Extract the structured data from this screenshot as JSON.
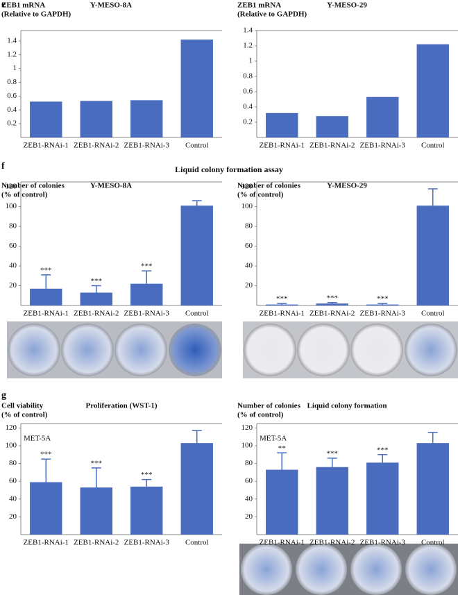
{
  "panels": [
    "e",
    "f",
    "g"
  ],
  "section_title": "Liquid colony formation assay",
  "chart_data": [
    {
      "type": "bar",
      "title": "Y-MESO-8A",
      "ylabel": [
        "ZEB1 mRNA",
        "(Relative to GAPDH)"
      ],
      "categories": [
        "ZEB1-RNAi-1",
        "ZEB1-RNAi-2",
        "ZEB1-RNAi-3",
        "Control"
      ],
      "values": [
        0.52,
        0.53,
        0.54,
        1.42
      ],
      "color": "#4a6cbe",
      "ylim": [
        0,
        1.55
      ],
      "yticks": [
        0.2,
        0.4,
        0.6,
        0.8,
        1.0,
        1.2,
        1.4
      ]
    },
    {
      "type": "bar",
      "title": "Y-MESO-29",
      "ylabel": [
        "ZEB1 mRNA",
        "(Relative to GAPDH)"
      ],
      "categories": [
        "ZEB1-RNAi-1",
        "ZEB1-RNAi-2",
        "ZEB1-RNAi-3",
        "Control"
      ],
      "values": [
        0.32,
        0.28,
        0.53,
        1.22
      ],
      "color": "#4a6cbe",
      "ylim": [
        0,
        1.4
      ],
      "yticks": [
        0.2,
        0.4,
        0.6,
        0.8,
        1.0,
        1.2,
        1.4
      ]
    },
    {
      "type": "bar",
      "title": "Y-MESO-8A",
      "ylabel": [
        "Number of colonies",
        "(% of control)"
      ],
      "categories": [
        "ZEB1-RNAi-1",
        "ZEB1-RNAi-2",
        "ZEB1-RNAi-3",
        "Control"
      ],
      "values": [
        17,
        13,
        22,
        101
      ],
      "errors": [
        14,
        7,
        13,
        5
      ],
      "annotations": [
        "***",
        "***",
        "***",
        null
      ],
      "color": "#4a6cbe",
      "ylim": [
        0,
        125
      ],
      "yticks": [
        20,
        40,
        60,
        80,
        100,
        120
      ]
    },
    {
      "type": "bar",
      "title": "Y-MESO-29",
      "ylabel": [
        "Number of colonies",
        "(% of control)"
      ],
      "categories": [
        "ZEB1-RNAi-1",
        "ZEB1-RNAi-2",
        "ZEB1-RNAi-3",
        "Control"
      ],
      "values": [
        1,
        2,
        1,
        101
      ],
      "errors": [
        1,
        1,
        1,
        17
      ],
      "annotations": [
        "***",
        "***",
        "***",
        null
      ],
      "color": "#4a6cbe",
      "ylim": [
        0,
        125
      ],
      "yticks": [
        20,
        40,
        60,
        80,
        100,
        120
      ]
    },
    {
      "type": "bar",
      "title": "Proliferation (WST-1)",
      "ylabel": [
        "Cell viability",
        "(% of control)"
      ],
      "cell_line": "MET-5A",
      "categories": [
        "ZEB1-RNAi-1",
        "ZEB1-RNAi-2",
        "ZEB1-RNAi-3",
        "Control"
      ],
      "values": [
        59,
        53,
        54,
        103
      ],
      "errors": [
        26,
        22,
        8,
        14
      ],
      "annotations": [
        "***",
        "***",
        "***",
        null
      ],
      "color": "#4a6cbe",
      "ylim": [
        0,
        125
      ],
      "yticks": [
        20,
        40,
        60,
        80,
        100,
        120
      ]
    },
    {
      "type": "bar",
      "title": "Liquid colony formation",
      "ylabel": [
        "Number of colonies",
        "(% of control)"
      ],
      "cell_line": "MET-5A",
      "categories": [
        "ZEB1-RNAi-1",
        "ZEB1-RNAi-2",
        "ZEB1-RNAi-3",
        "Control"
      ],
      "values": [
        73,
        76,
        81,
        103
      ],
      "errors": [
        19,
        10,
        9,
        12
      ],
      "annotations": [
        "**",
        "***",
        "***",
        null
      ],
      "color": "#4a6cbe",
      "ylim": [
        0,
        125
      ],
      "yticks": [
        20,
        40,
        60,
        80,
        100,
        120
      ]
    }
  ]
}
